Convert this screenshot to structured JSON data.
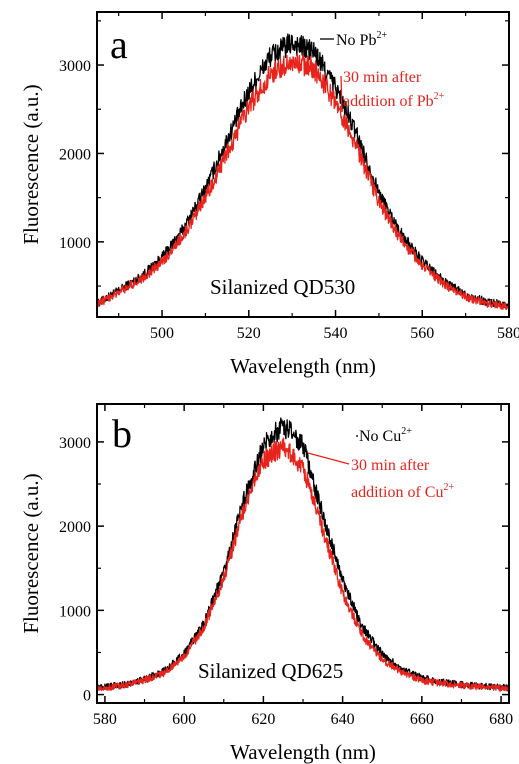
{
  "chart_data": [
    {
      "type": "line",
      "panel_label": "a",
      "xlabel": "Wavelength (nm)",
      "ylabel": "Fluorescence (a.u.)",
      "xlim": [
        485,
        580
      ],
      "ylim": [
        150,
        3600
      ],
      "x_ticks": [
        500,
        520,
        540,
        560,
        580
      ],
      "y_ticks": [
        1000,
        2000,
        3000
      ],
      "inset_text": "Silanized QD530",
      "annotations": [
        {
          "base": "No Pb",
          "sup": "2+",
          "color": "#000000"
        },
        {
          "line1": "30 min after",
          "line2_base": "addition of Pb",
          "line2_sup": "2+",
          "color": "#e8231c"
        }
      ],
      "series": [
        {
          "color": "#000000",
          "x": [
            485,
            490,
            495,
            500,
            505,
            510,
            515,
            520,
            525,
            530,
            535,
            540,
            545,
            550,
            555,
            560,
            565,
            570,
            575,
            580
          ],
          "y": [
            300,
            450,
            600,
            820,
            1150,
            1600,
            2150,
            2700,
            3100,
            3250,
            3150,
            2750,
            2200,
            1550,
            1100,
            780,
            550,
            400,
            320,
            280
          ]
        },
        {
          "color": "#e8231c",
          "x": [
            485,
            490,
            495,
            500,
            505,
            510,
            515,
            520,
            525,
            530,
            535,
            540,
            545,
            550,
            555,
            560,
            565,
            570,
            575,
            580
          ],
          "y": [
            290,
            430,
            570,
            770,
            1080,
            1500,
            2000,
            2520,
            2900,
            3050,
            2960,
            2580,
            2050,
            1450,
            1030,
            730,
            520,
            380,
            300,
            270
          ]
        }
      ]
    },
    {
      "type": "line",
      "panel_label": "b",
      "xlabel": "Wavelength (nm)",
      "ylabel": "Fluorescence (a.u.)",
      "xlim": [
        578,
        682
      ],
      "ylim": [
        -100,
        3450
      ],
      "x_ticks": [
        580,
        600,
        620,
        640,
        660,
        680
      ],
      "y_ticks": [
        0,
        1000,
        2000,
        3000
      ],
      "inset_text": "Silanized QD625",
      "annotations": [
        {
          "base": "No Cu",
          "sup": "2+",
          "color": "#000000"
        },
        {
          "line1": "30 min after",
          "line2_base": "addition of Cu",
          "line2_sup": "2+",
          "color": "#e8231c"
        }
      ],
      "series": [
        {
          "color": "#000000",
          "x": [
            578,
            585,
            590,
            595,
            600,
            605,
            610,
            615,
            620,
            625,
            630,
            635,
            640,
            645,
            650,
            655,
            660,
            665,
            670,
            675,
            682
          ],
          "y": [
            80,
            120,
            180,
            280,
            480,
            850,
            1450,
            2300,
            2950,
            3200,
            2950,
            2150,
            1350,
            800,
            480,
            300,
            200,
            150,
            120,
            100,
            80
          ]
        },
        {
          "color": "#e8231c",
          "x": [
            578,
            585,
            590,
            595,
            600,
            605,
            610,
            615,
            620,
            625,
            630,
            635,
            640,
            645,
            650,
            655,
            660,
            665,
            670,
            675,
            682
          ],
          "y": [
            70,
            110,
            170,
            260,
            450,
            800,
            1380,
            2180,
            2780,
            2950,
            2700,
            1950,
            1200,
            700,
            420,
            260,
            170,
            130,
            110,
            90,
            70
          ]
        }
      ]
    }
  ]
}
